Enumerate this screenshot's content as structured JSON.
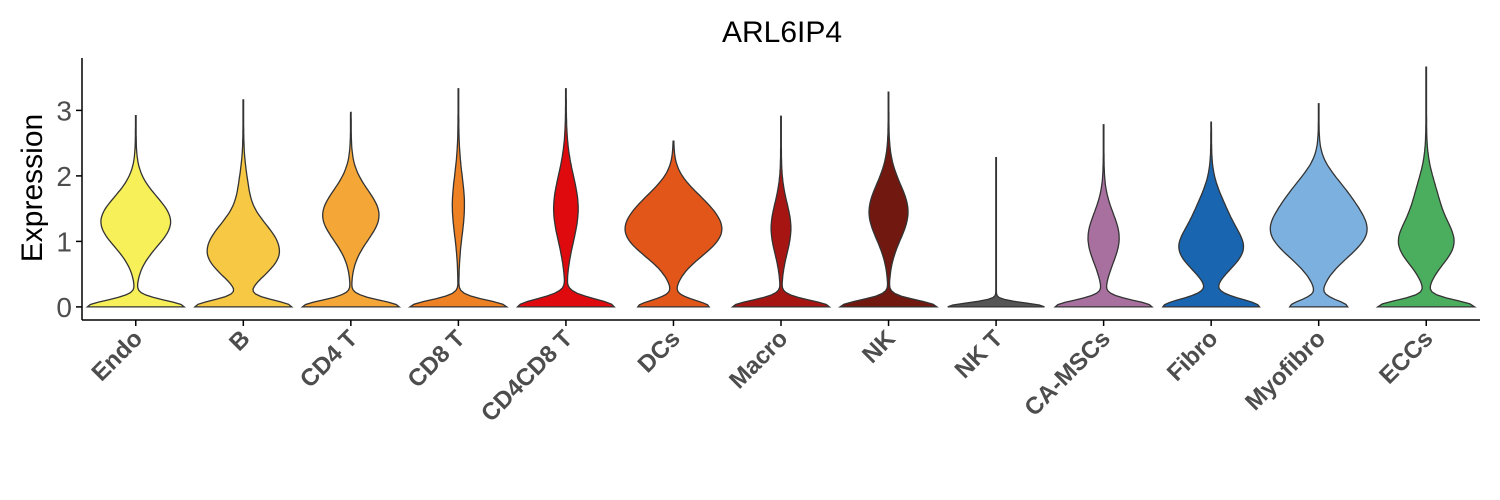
{
  "chart_data": {
    "type": "violin",
    "title": "ARL6IP4",
    "ylabel": "Expression",
    "xlabel": "",
    "ylim": [
      -0.2,
      3.8
    ],
    "yticks": [
      0,
      1,
      2,
      3
    ],
    "grid": false,
    "legend": "none",
    "categories": [
      "Endo",
      "B",
      "CD4 T",
      "CD8 T",
      "CD4CD8 T",
      "DCs",
      "Macro",
      "NK",
      "NK T",
      "CA-MSCs",
      "Fibro",
      "Myofibro",
      "ECCs"
    ],
    "colors": [
      "#F7F059",
      "#F6C844",
      "#F4A636",
      "#EE8124",
      "#DF0A0E",
      "#E2561A",
      "#A71513",
      "#711811",
      "#555555",
      "#A8709F",
      "#1A65B0",
      "#7CB0DE",
      "#4BAE5F"
    ],
    "series": [
      {
        "name": "Endo",
        "max": 2.92,
        "modes": [
          [
            0,
            1.0,
            0.1
          ],
          [
            1.3,
            0.72,
            0.38
          ]
        ]
      },
      {
        "name": "B",
        "max": 3.16,
        "modes": [
          [
            0,
            1.0,
            0.1
          ],
          [
            0.7,
            0.55,
            0.28
          ],
          [
            1.1,
            0.42,
            0.28
          ],
          [
            1.7,
            0.1,
            0.35
          ]
        ]
      },
      {
        "name": "CD4 T",
        "max": 2.97,
        "modes": [
          [
            0,
            1.0,
            0.1
          ],
          [
            1.4,
            0.58,
            0.38
          ]
        ]
      },
      {
        "name": "CD8 T",
        "max": 3.33,
        "modes": [
          [
            0,
            1.0,
            0.1
          ],
          [
            1.55,
            0.12,
            0.45
          ]
        ]
      },
      {
        "name": "CD4CD8 T",
        "max": 3.33,
        "modes": [
          [
            0,
            1.0,
            0.12
          ],
          [
            1.5,
            0.25,
            0.5
          ]
        ]
      },
      {
        "name": "DCs",
        "max": 2.53,
        "modes": [
          [
            0,
            0.82,
            0.1
          ],
          [
            1.1,
            1.0,
            0.35
          ],
          [
            1.6,
            0.4,
            0.3
          ]
        ]
      },
      {
        "name": "Macro",
        "max": 2.91,
        "modes": [
          [
            0,
            1.0,
            0.1
          ],
          [
            1.2,
            0.2,
            0.38
          ]
        ]
      },
      {
        "name": "NK",
        "max": 3.28,
        "modes": [
          [
            0,
            1.0,
            0.1
          ],
          [
            1.45,
            0.4,
            0.42
          ]
        ]
      },
      {
        "name": "NK T",
        "max": 2.28,
        "modes": [
          [
            0,
            1.0,
            0.06
          ]
        ]
      },
      {
        "name": "CA-MSCs",
        "max": 2.78,
        "modes": [
          [
            0,
            1.0,
            0.1
          ],
          [
            1.05,
            0.32,
            0.38
          ]
        ]
      },
      {
        "name": "Fibro",
        "max": 2.82,
        "modes": [
          [
            0,
            1.0,
            0.12
          ],
          [
            0.85,
            0.58,
            0.3
          ],
          [
            1.4,
            0.28,
            0.35
          ]
        ]
      },
      {
        "name": "Myofibro",
        "max": 3.1,
        "modes": [
          [
            0,
            0.6,
            0.1
          ],
          [
            1.15,
            1.0,
            0.4
          ],
          [
            1.8,
            0.3,
            0.3
          ]
        ]
      },
      {
        "name": "ECCs",
        "max": 3.66,
        "modes": [
          [
            0,
            1.0,
            0.1
          ],
          [
            0.95,
            0.52,
            0.32
          ],
          [
            1.6,
            0.22,
            0.38
          ]
        ]
      }
    ]
  }
}
